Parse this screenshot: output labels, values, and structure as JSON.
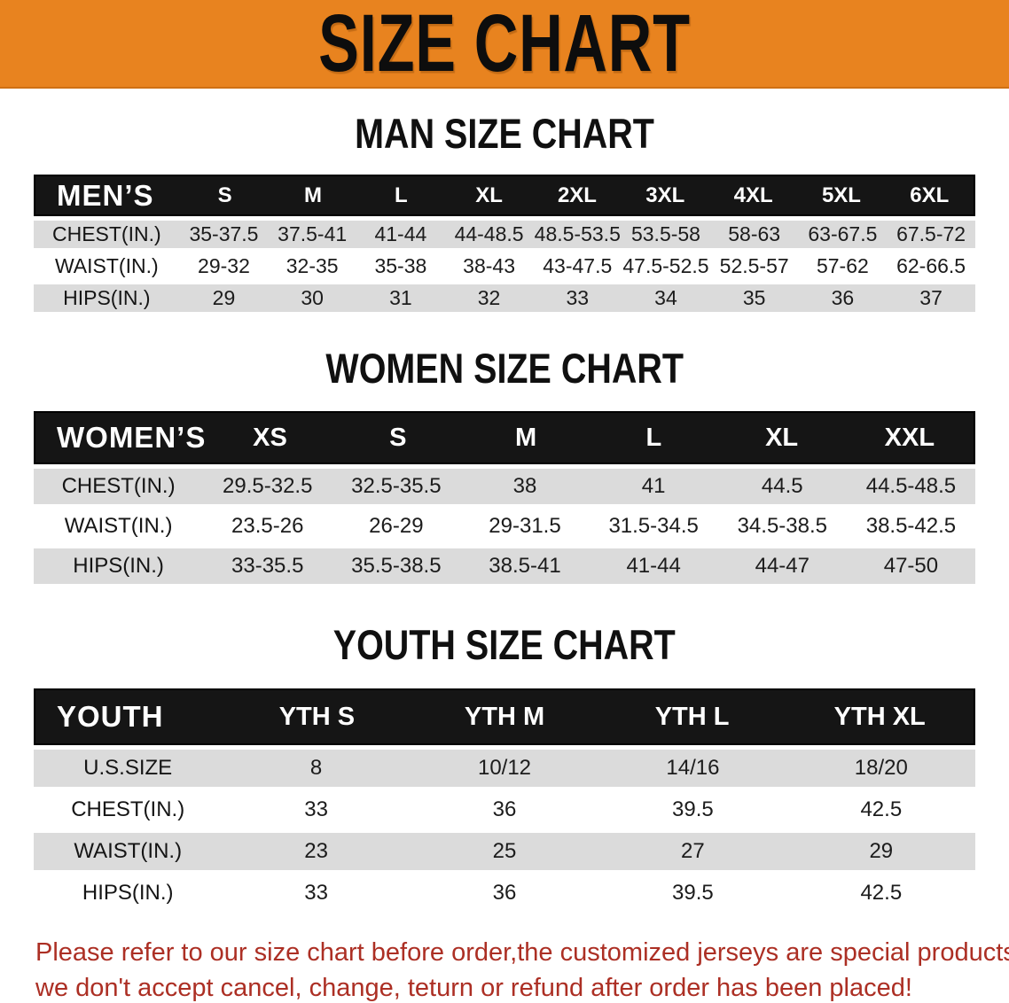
{
  "banner": {
    "title": "SIZE CHART"
  },
  "colors": {
    "banner_orange": "#E8831F",
    "table_header_black": "#151515",
    "row_stripe_gray": "#DBDBDB",
    "disclaimer_red": "#AC2F24"
  },
  "sections": {
    "men": {
      "heading": "MAN SIZE CHART",
      "table": {
        "label": "MEN’S",
        "columns": [
          "S",
          "M",
          "L",
          "XL",
          "2XL",
          "3XL",
          "4XL",
          "5XL",
          "6XL"
        ],
        "rows": [
          {
            "label": "CHEST(IN.)",
            "values": [
              "35-37.5",
              "37.5-41",
              "41-44",
              "44-48.5",
              "48.5-53.5",
              "53.5-58",
              "58-63",
              "63-67.5",
              "67.5-72"
            ]
          },
          {
            "label": "WAIST(IN.)",
            "values": [
              "29-32",
              "32-35",
              "35-38",
              "38-43",
              "43-47.5",
              "47.5-52.5",
              "52.5-57",
              "57-62",
              "62-66.5"
            ]
          },
          {
            "label": "HIPS(IN.)",
            "values": [
              "29",
              "30",
              "31",
              "32",
              "33",
              "34",
              "35",
              "36",
              "37"
            ]
          }
        ]
      }
    },
    "women": {
      "heading": "WOMEN SIZE CHART",
      "table": {
        "label": "WOMEN’S",
        "columns": [
          "XS",
          "S",
          "M",
          "L",
          "XL",
          "XXL"
        ],
        "rows": [
          {
            "label": "CHEST(IN.)",
            "values": [
              "29.5-32.5",
              "32.5-35.5",
              "38",
              "41",
              "44.5",
              "44.5-48.5"
            ]
          },
          {
            "label": "WAIST(IN.)",
            "values": [
              "23.5-26",
              "26-29",
              "29-31.5",
              "31.5-34.5",
              "34.5-38.5",
              "38.5-42.5"
            ]
          },
          {
            "label": "HIPS(IN.)",
            "values": [
              "33-35.5",
              "35.5-38.5",
              "38.5-41",
              "41-44",
              "44-47",
              "47-50"
            ]
          }
        ]
      }
    },
    "youth": {
      "heading": "YOUTH SIZE CHART",
      "table": {
        "label": "YOUTH",
        "columns": [
          "YTH S",
          "YTH M",
          "YTH L",
          "YTH XL"
        ],
        "rows": [
          {
            "label": "U.S.SIZE",
            "values": [
              "8",
              "10/12",
              "14/16",
              "18/20"
            ]
          },
          {
            "label": "CHEST(IN.)",
            "values": [
              "33",
              "36",
              "39.5",
              "42.5"
            ]
          },
          {
            "label": "WAIST(IN.)",
            "values": [
              "23",
              "25",
              "27",
              "29"
            ]
          },
          {
            "label": "HIPS(IN.)",
            "values": [
              "33",
              "36",
              "39.5",
              "42.5"
            ]
          }
        ]
      }
    }
  },
  "disclaimer": {
    "line1": "Please refer to our size chart before order,the customized jerseys are special products,",
    "line2": "we don't accept cancel, change, teturn or refund after order has been placed!"
  }
}
